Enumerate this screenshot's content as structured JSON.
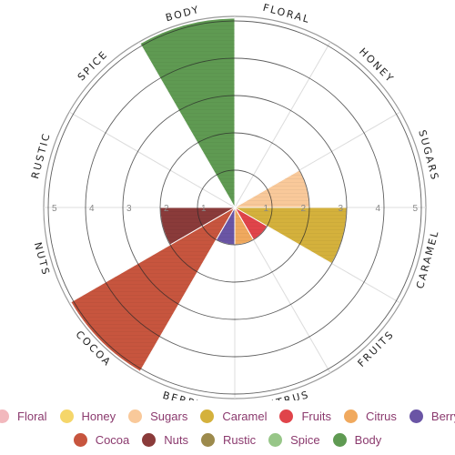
{
  "chart_data": {
    "type": "polar-area",
    "title": "",
    "categories": [
      "FLORAL",
      "HONEY",
      "SUGARS",
      "CARAMEL",
      "FRUITS",
      "CITRUS",
      "BERRY",
      "COCOA",
      "NUTS",
      "RUSTIC",
      "SPICE",
      "BODY"
    ],
    "values": [
      0,
      0,
      2,
      3,
      1,
      1,
      1,
      5,
      2,
      0,
      0,
      5
    ],
    "rlim": [
      0,
      5
    ],
    "rticks": [
      "1",
      "2",
      "3",
      "4",
      "5"
    ],
    "grid": true,
    "legend_position": "bottom",
    "legend": [
      {
        "label": "Floral",
        "color": "#f2b8bd"
      },
      {
        "label": "Honey",
        "color": "#f5d66a"
      },
      {
        "label": "Sugars",
        "color": "#f9c99a"
      },
      {
        "label": "Caramel",
        "color": "#d4b13c"
      },
      {
        "label": "Fruits",
        "color": "#e0444a"
      },
      {
        "label": "Citrus",
        "color": "#f0a95e"
      },
      {
        "label": "Berry",
        "color": "#6a55a5"
      },
      {
        "label": "Cocoa",
        "color": "#c7553e"
      },
      {
        "label": "Nuts",
        "color": "#8a3b3a"
      },
      {
        "label": "Rustic",
        "color": "#9c8a4c"
      },
      {
        "label": "Spice",
        "color": "#97c688"
      },
      {
        "label": "Body",
        "color": "#5f9a52"
      }
    ]
  }
}
